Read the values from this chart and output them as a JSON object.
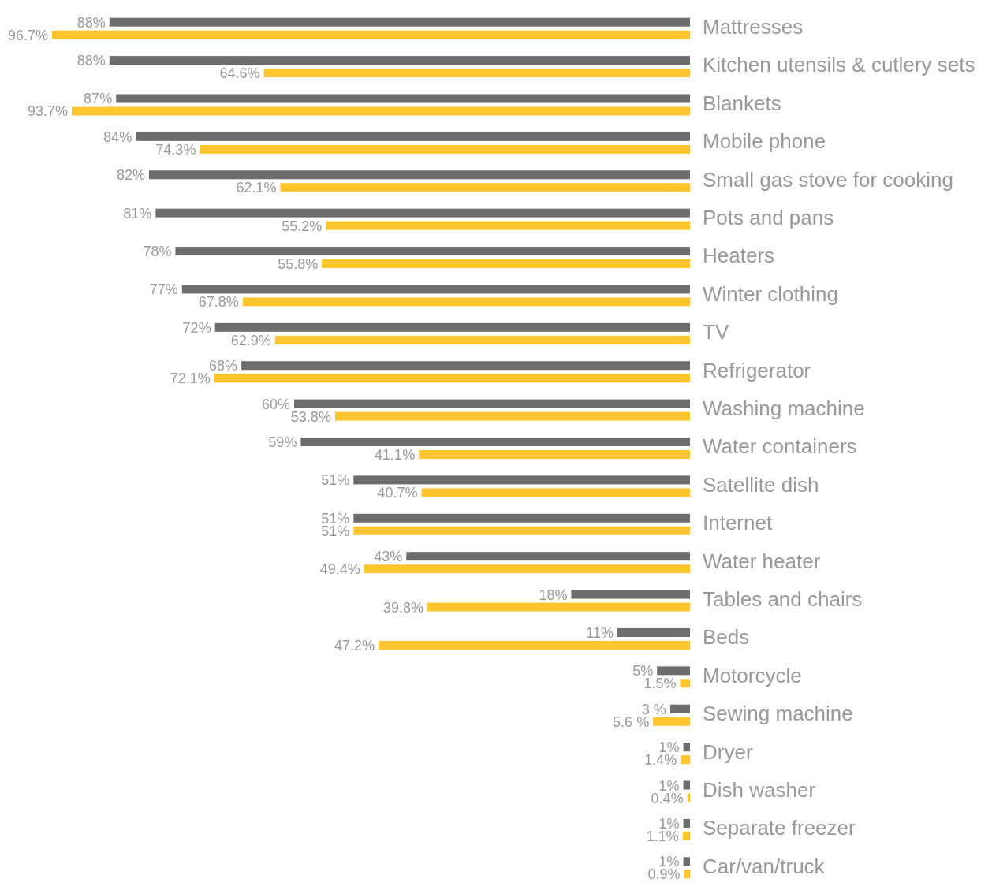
{
  "chart_data": {
    "type": "bar",
    "orientation": "horizontal",
    "categories": [
      "Mattresses",
      "Kitchen utensils & cutlery sets",
      "Blankets",
      "Mobile phone",
      "Small gas stove for cooking",
      "Pots and pans",
      "Heaters",
      "Winter clothing",
      "TV",
      "Refrigerator",
      "Washing machine",
      "Water containers",
      "Satellite dish",
      "Internet",
      "Water heater",
      "Tables and chairs",
      "Beds",
      "Motorcycle",
      "Sewing machine",
      "Dryer",
      "Dish washer",
      "Separate freezer",
      "Car/van/truck"
    ],
    "series": [
      {
        "color": "#6d6d6d",
        "values": [
          88,
          88,
          87,
          84,
          82,
          81,
          78,
          77,
          72,
          68,
          60,
          59,
          51,
          51,
          43,
          18,
          11,
          5,
          3,
          1,
          1,
          1,
          1
        ],
        "value_labels": [
          "88%",
          "88%",
          "87%",
          "84%",
          "82%",
          "81%",
          "78%",
          "77%",
          "72%",
          "68%",
          "60%",
          "59%",
          "51%",
          "51%",
          "43%",
          "18%",
          "11%",
          "5%",
          "3 %",
          "1%",
          "1%",
          "1%",
          "1%"
        ]
      },
      {
        "color": "#fec52e",
        "values": [
          96.7,
          64.6,
          93.7,
          74.3,
          62.1,
          55.2,
          55.8,
          67.8,
          62.9,
          72.1,
          53.8,
          41.1,
          40.7,
          51,
          49.4,
          39.8,
          47.2,
          1.5,
          5.6,
          1.4,
          0.4,
          1.1,
          0.9
        ],
        "value_labels": [
          "96.7%",
          "64.6%",
          "93.7%",
          "74.3%",
          "62.1%",
          "55.2%",
          "55.8%",
          "67.8%",
          "62.9%",
          "72.1%",
          "53.8%",
          "41.1%",
          "40.7%",
          "51%",
          "49.4%",
          "39.8%",
          "47.2%",
          "1.5%",
          "5.6 %",
          "1.4%",
          "0.4%",
          "1.1%",
          "0.9%"
        ]
      }
    ]
  }
}
